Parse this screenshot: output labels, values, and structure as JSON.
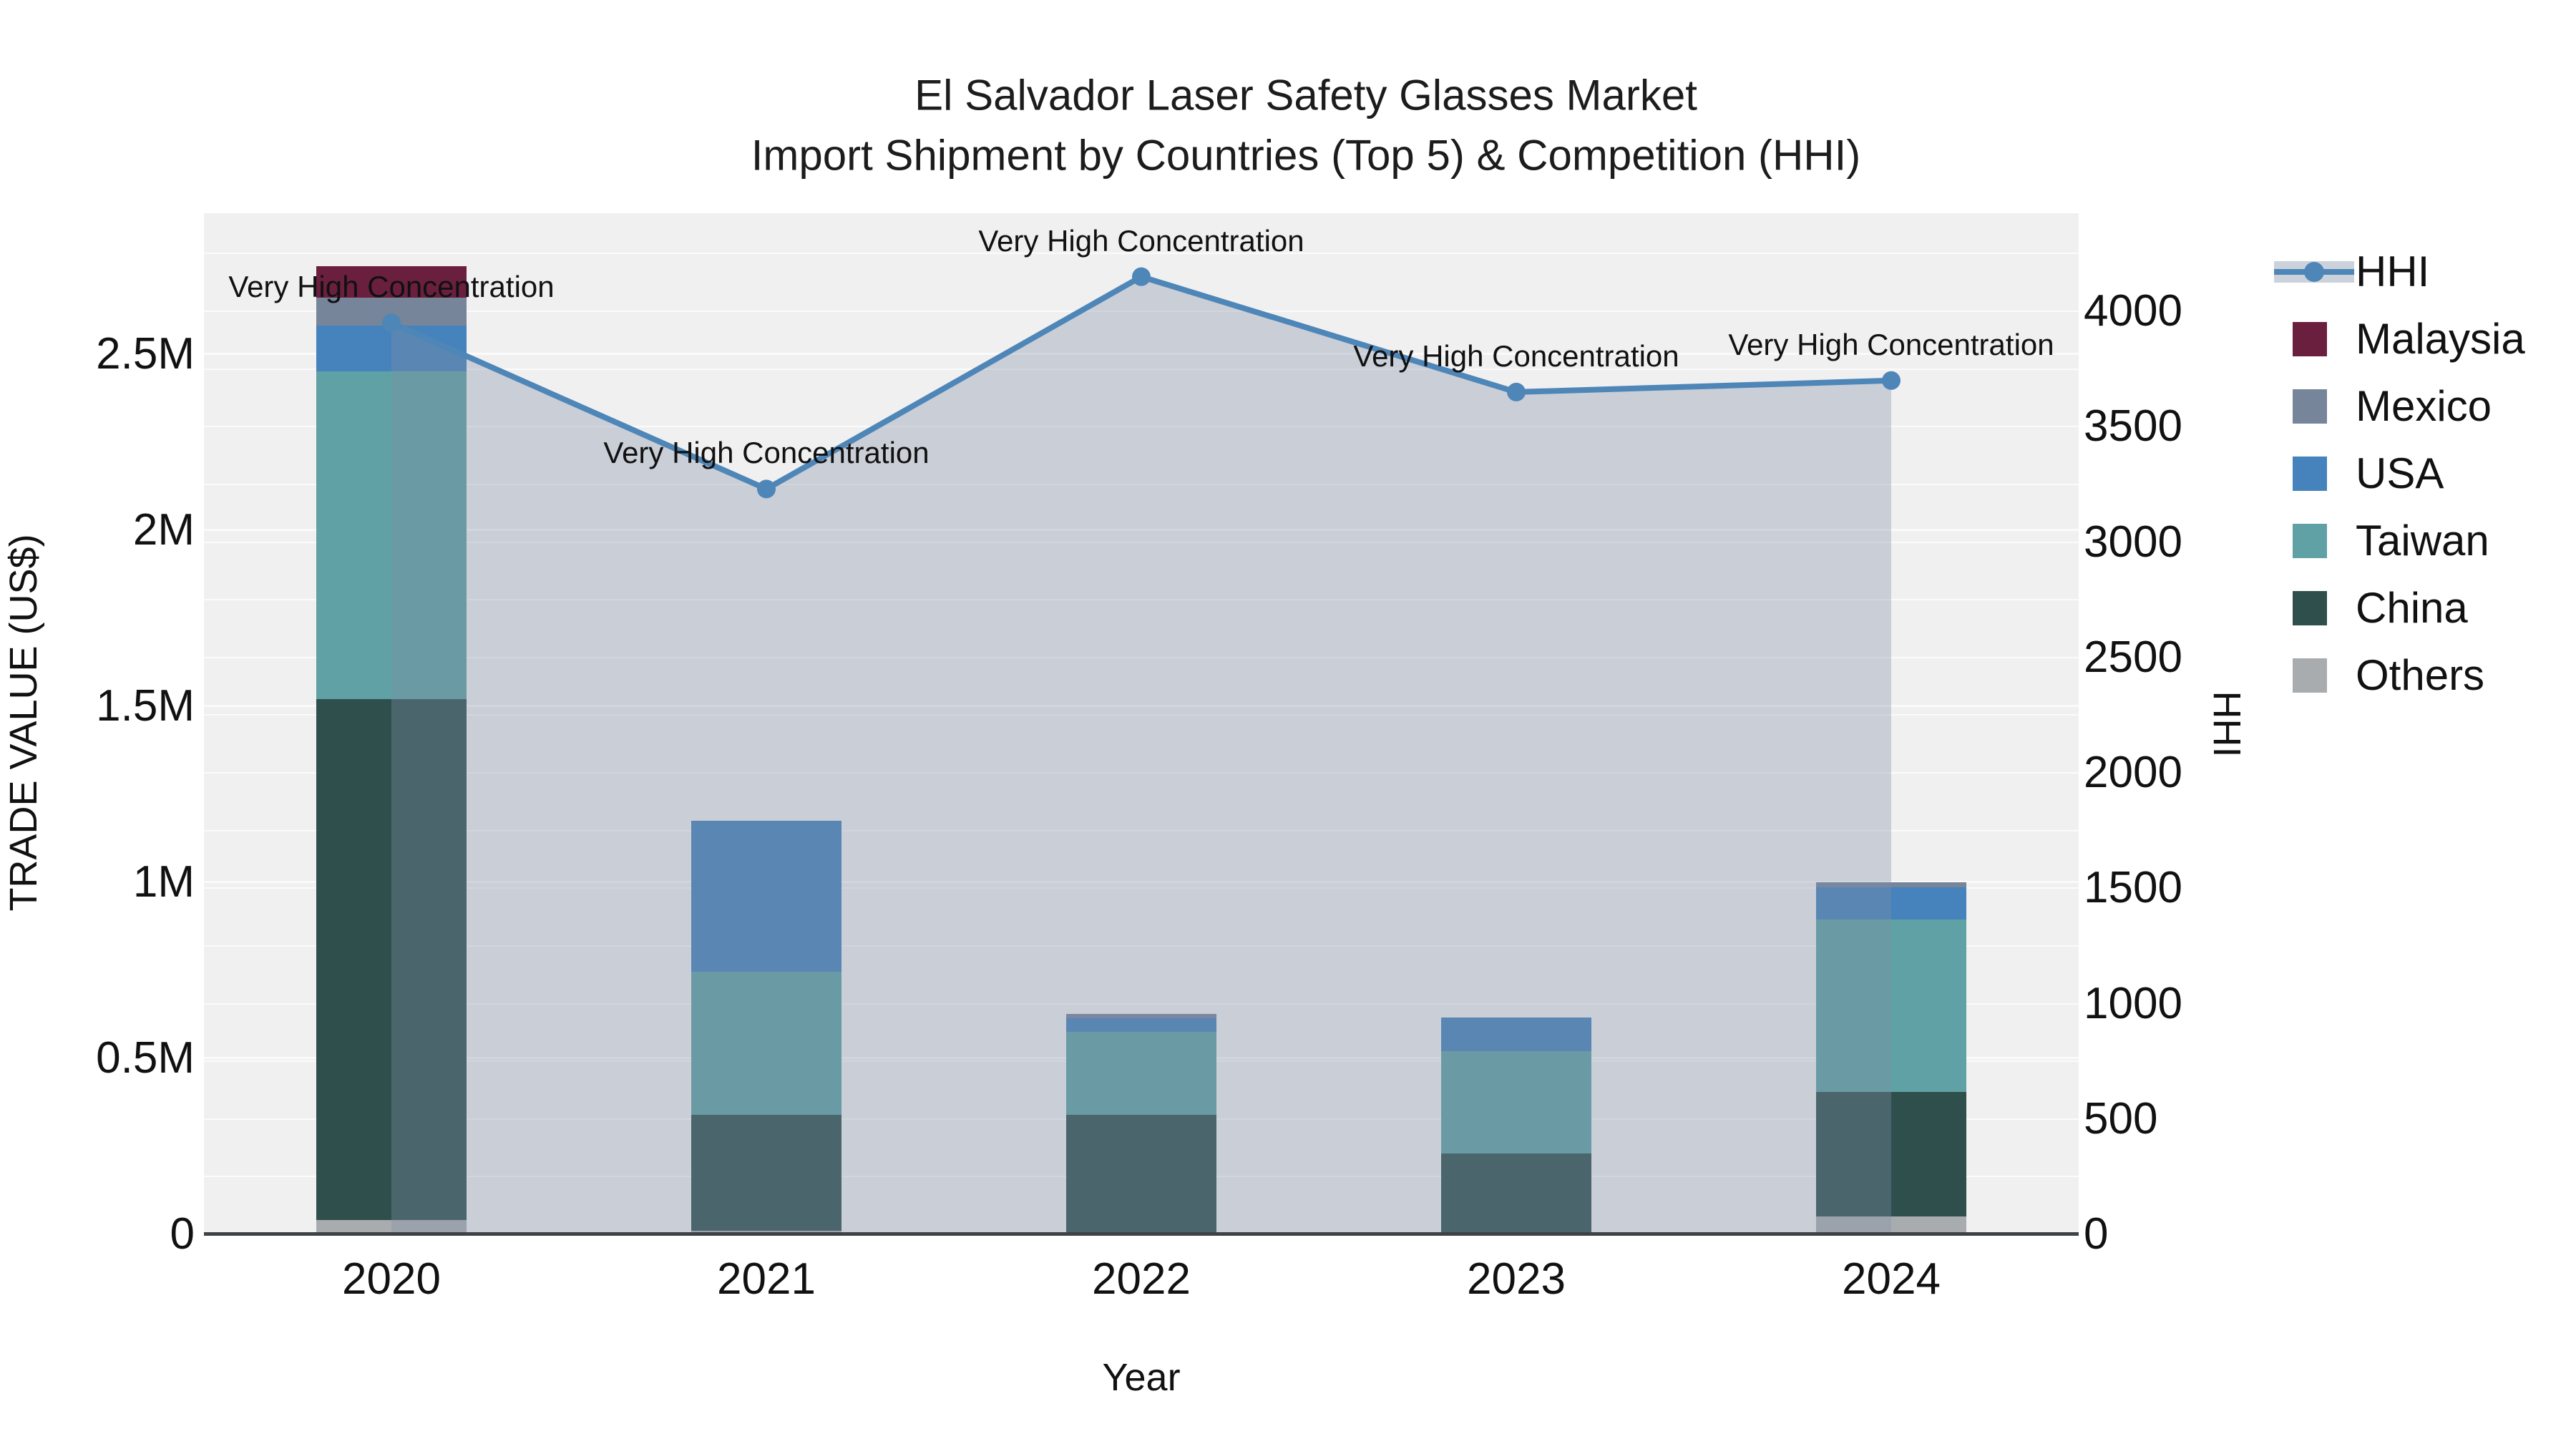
{
  "title": {
    "line1": "El Salvador Laser Safety Glasses Market",
    "line2": "Import Shipment by Countries (Top 5) & Competition (HHI)"
  },
  "axes": {
    "left": {
      "title": "TRADE VALUE (US$)",
      "tick_values": [
        0,
        500000,
        1000000,
        1500000,
        2000000,
        2500000
      ],
      "tick_labels": [
        "0",
        "0.5M",
        "1M",
        "1.5M",
        "2M",
        "2.5M"
      ],
      "range": [
        0,
        2900000
      ]
    },
    "right": {
      "title": "HHI",
      "tick_values": [
        0,
        500,
        1000,
        1500,
        2000,
        2500,
        3000,
        3500,
        4000
      ],
      "tick_labels": [
        "0",
        "500",
        "1000",
        "1500",
        "2000",
        "2500",
        "3000",
        "3500",
        "4000"
      ],
      "range": [
        0,
        4425
      ],
      "minor_grid_step": 250
    },
    "x": {
      "title": "Year",
      "categories": [
        "2020",
        "2021",
        "2022",
        "2023",
        "2024"
      ]
    }
  },
  "legend": [
    {
      "label": "HHI",
      "type": "line",
      "color": "#4e86b8"
    },
    {
      "label": "Malaysia",
      "type": "square",
      "color": "#6b1f3f"
    },
    {
      "label": "Mexico",
      "type": "square",
      "color": "#76859a"
    },
    {
      "label": "USA",
      "type": "square",
      "color": "#4682bb"
    },
    {
      "label": "Taiwan",
      "type": "square",
      "color": "#5fa1a4"
    },
    {
      "label": "China",
      "type": "square",
      "color": "#2f4f4c"
    },
    {
      "label": "Others",
      "type": "square",
      "color": "#a9acae"
    }
  ],
  "colors": {
    "plot_background": "#f1f0f0",
    "axis_line": "#3f4245",
    "hhi_line": "#4e86b8",
    "hhi_area_fill": "rgba(128,142,168,0.35)",
    "annotation_text": "#111111"
  },
  "chart_data": {
    "type": "bar",
    "subtype": "stacked_bars_with_line_overlay",
    "title": "El Salvador Laser Safety Glasses Market — Import Shipment by Countries (Top 5) & Competition (HHI)",
    "categories": [
      "2020",
      "2021",
      "2022",
      "2023",
      "2024"
    ],
    "xlabel": "Year",
    "ylabel_left": "TRADE VALUE (US$)",
    "ylabel_right": "HHI",
    "ylim_left": [
      0,
      2900000
    ],
    "ylim_right": [
      0,
      4425
    ],
    "grid": true,
    "legend_position": "outside-top-right",
    "series": [
      {
        "name": "Others",
        "axis": "left",
        "stack_order": 1,
        "color": "#a9acae",
        "values": [
          40000,
          10000,
          5000,
          5000,
          50000
        ]
      },
      {
        "name": "China",
        "axis": "left",
        "stack_order": 2,
        "color": "#2f4f4c",
        "values": [
          1480000,
          330000,
          335000,
          225000,
          355000
        ]
      },
      {
        "name": "Taiwan",
        "axis": "left",
        "stack_order": 3,
        "color": "#5fa1a4",
        "values": [
          930000,
          405000,
          235000,
          290000,
          490000
        ]
      },
      {
        "name": "USA",
        "axis": "left",
        "stack_order": 4,
        "color": "#4682bb",
        "values": [
          130000,
          430000,
          38000,
          95000,
          90000
        ]
      },
      {
        "name": "Mexico",
        "axis": "left",
        "stack_order": 5,
        "color": "#76859a",
        "values": [
          80000,
          0,
          12000,
          0,
          15000
        ]
      },
      {
        "name": "Malaysia",
        "axis": "left",
        "stack_order": 6,
        "color": "#6b1f3f",
        "values": [
          90000,
          0,
          0,
          0,
          0
        ]
      }
    ],
    "bar_totals": [
      2750000,
      1175000,
      625000,
      615000,
      1000000
    ],
    "line_series": {
      "name": "HHI",
      "axis": "right",
      "color": "#4e86b8",
      "area_fill": true,
      "values": [
        3950,
        3230,
        4150,
        3650,
        3700
      ]
    },
    "annotations": [
      {
        "category": "2020",
        "text": "Very High Concentration"
      },
      {
        "category": "2021",
        "text": "Very High Concentration"
      },
      {
        "category": "2022",
        "text": "Very High Concentration"
      },
      {
        "category": "2023",
        "text": "Very High Concentration"
      },
      {
        "category": "2024",
        "text": "Very High Concentration"
      }
    ]
  }
}
